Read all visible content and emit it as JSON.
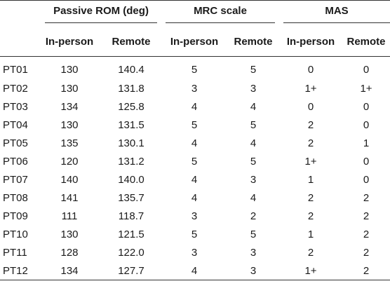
{
  "table": {
    "groups": [
      {
        "label": ""
      },
      {
        "label": "Passive ROM (deg)"
      },
      {
        "label": "MRC scale"
      },
      {
        "label": "MAS"
      }
    ],
    "subheaders": [
      "",
      "In-person",
      "Remote",
      "In-person",
      "Remote",
      "In-person",
      "Remote"
    ],
    "rows": [
      [
        "PT01",
        "130",
        "140.4",
        "5",
        "5",
        "0",
        "0"
      ],
      [
        "PT02",
        "130",
        "131.8",
        "3",
        "3",
        "1+",
        "1+"
      ],
      [
        "PT03",
        "134",
        "125.8",
        "4",
        "4",
        "0",
        "0"
      ],
      [
        "PT04",
        "130",
        "131.5",
        "5",
        "5",
        "2",
        "0"
      ],
      [
        "PT05",
        "135",
        "130.1",
        "4",
        "4",
        "2",
        "1"
      ],
      [
        "PT06",
        "120",
        "131.2",
        "5",
        "5",
        "1+",
        "0"
      ],
      [
        "PT07",
        "140",
        "140.0",
        "4",
        "3",
        "1",
        "0"
      ],
      [
        "PT08",
        "141",
        "135.7",
        "4",
        "4",
        "2",
        "2"
      ],
      [
        "PT09",
        "111",
        "118.7",
        "3",
        "2",
        "2",
        "2"
      ],
      [
        "PT10",
        "130",
        "121.5",
        "5",
        "5",
        "1",
        "2"
      ],
      [
        "PT11",
        "128",
        "122.0",
        "3",
        "3",
        "2",
        "2"
      ],
      [
        "PT12",
        "134",
        "127.7",
        "4",
        "3",
        "1+",
        "2"
      ]
    ]
  }
}
